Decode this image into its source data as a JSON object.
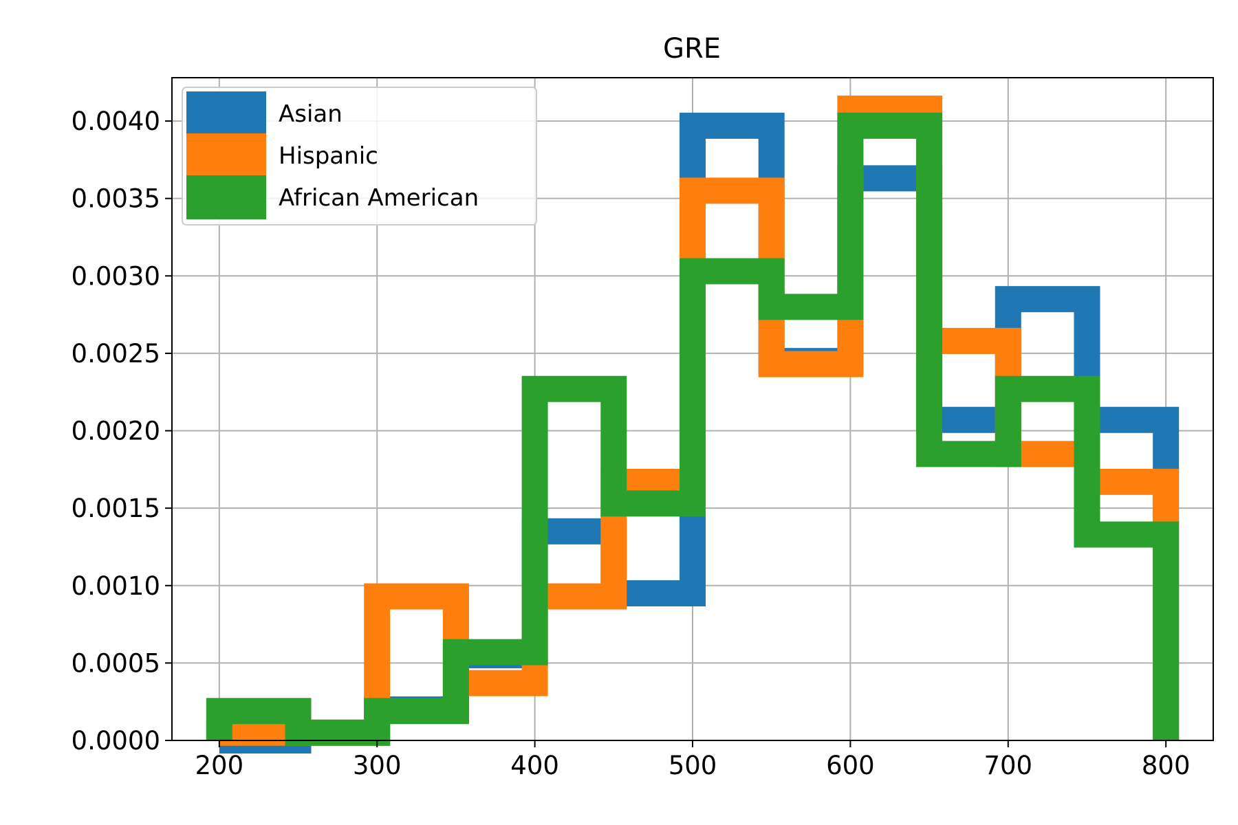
{
  "chart_data": {
    "type": "histogram-step",
    "title": "GRE",
    "xlabel": "",
    "ylabel": "",
    "xlim": [
      170,
      830
    ],
    "ylim": [
      0,
      0.00428
    ],
    "xticks": [
      200,
      300,
      400,
      500,
      600,
      700,
      800
    ],
    "yticks": [
      0.0,
      0.0005,
      0.001,
      0.0015,
      0.002,
      0.0025,
      0.003,
      0.0035,
      0.004
    ],
    "ytick_labels": [
      "0.0000",
      "0.0005",
      "0.0010",
      "0.0015",
      "0.0020",
      "0.0025",
      "0.0030",
      "0.0035",
      "0.0040"
    ],
    "grid": true,
    "legend_position": "top-left",
    "series": [
      {
        "name": "Asian",
        "color": "#1f77b4",
        "edges": [
          200,
          250,
          300,
          350,
          400,
          450,
          500,
          550,
          600,
          650,
          700,
          750,
          800
        ],
        "values": [
          0.0,
          5e-05,
          0.0002,
          0.00055,
          0.00135,
          0.00095,
          0.00397,
          0.00245,
          0.00363,
          0.00207,
          0.00285,
          0.00207
        ]
      },
      {
        "name": "Hispanic",
        "color": "#ff7f0e",
        "edges": [
          200,
          250,
          300,
          350,
          400,
          450,
          500,
          550,
          600,
          650,
          700,
          750,
          800
        ],
        "values": [
          5e-05,
          5e-05,
          0.00093,
          0.00037,
          0.00093,
          0.00167,
          0.00355,
          0.00243,
          0.00408,
          0.00258,
          0.00185,
          0.00167
        ]
      },
      {
        "name": "African American",
        "color": "#2ca02c",
        "edges": [
          200,
          250,
          300,
          350,
          400,
          450,
          500,
          550,
          600,
          650,
          700,
          750,
          800
        ],
        "values": [
          0.00019,
          5e-05,
          0.00019,
          0.00057,
          0.00227,
          0.00153,
          0.00303,
          0.0028,
          0.00397,
          0.00185,
          0.00227,
          0.00133
        ]
      }
    ]
  }
}
